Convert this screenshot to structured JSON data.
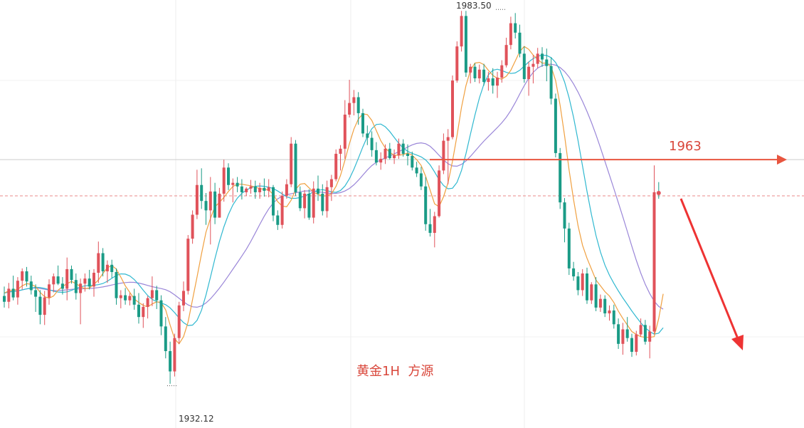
{
  "chart_data": {
    "type": "candlestick",
    "title": "黄金1H  方源",
    "high_label": "1983.50",
    "low_label": "1932.12",
    "level_label": "1963",
    "level_value": 1963,
    "dashed_level": 1958,
    "ylim": [
      1926,
      1985
    ],
    "grid": true,
    "colors": {
      "up": "#e0525a",
      "down": "#1a9b86",
      "ma_fast": "#f0a040",
      "ma_mid": "#30b8d0",
      "ma_slow": "#9a86d8",
      "level_arrow": "#e8553f",
      "forecast_arrow": "#ee3333",
      "dashed_level": "#e88a8a",
      "text_accent": "#d9473b"
    },
    "candles": [
      [
        1944.2,
        1945.5,
        1942.6,
        1943.4
      ],
      [
        1943.4,
        1946.0,
        1942.5,
        1945.2
      ],
      [
        1945.2,
        1947.0,
        1943.6,
        1944.0
      ],
      [
        1944.0,
        1946.8,
        1943.0,
        1946.3
      ],
      [
        1946.3,
        1948.0,
        1945.1,
        1947.6
      ],
      [
        1947.6,
        1948.2,
        1945.5,
        1946.2
      ],
      [
        1946.2,
        1947.0,
        1944.4,
        1945.0
      ],
      [
        1945.0,
        1945.8,
        1942.0,
        1944.1
      ],
      [
        1944.1,
        1945.0,
        1940.3,
        1941.6
      ],
      [
        1941.6,
        1944.9,
        1940.2,
        1944.0
      ],
      [
        1944.0,
        1946.5,
        1943.0,
        1945.8
      ],
      [
        1945.8,
        1947.3,
        1944.7,
        1946.9
      ],
      [
        1946.9,
        1948.4,
        1945.7,
        1945.9
      ],
      [
        1945.9,
        1946.8,
        1944.4,
        1945.2
      ],
      [
        1945.2,
        1949.5,
        1943.6,
        1947.9
      ],
      [
        1947.9,
        1948.4,
        1945.9,
        1946.4
      ],
      [
        1946.4,
        1947.3,
        1943.7,
        1944.6
      ],
      [
        1944.6,
        1946.6,
        1940.3,
        1945.9
      ],
      [
        1945.9,
        1947.3,
        1944.8,
        1946.6
      ],
      [
        1946.6,
        1947.8,
        1945.1,
        1945.5
      ],
      [
        1945.5,
        1947.9,
        1944.1,
        1947.4
      ],
      [
        1947.4,
        1951.7,
        1946.0,
        1950.1
      ],
      [
        1950.1,
        1950.8,
        1946.9,
        1947.6
      ],
      [
        1947.6,
        1949.1,
        1946.0,
        1948.5
      ],
      [
        1948.5,
        1949.2,
        1946.7,
        1947.5
      ],
      [
        1947.5,
        1948.0,
        1943.0,
        1943.9
      ],
      [
        1943.9,
        1945.0,
        1942.5,
        1944.3
      ],
      [
        1944.3,
        1945.3,
        1943.0,
        1943.6
      ],
      [
        1943.6,
        1944.6,
        1942.9,
        1944.2
      ],
      [
        1944.2,
        1945.2,
        1942.3,
        1943.0
      ],
      [
        1943.0,
        1944.6,
        1940.4,
        1941.3
      ],
      [
        1941.3,
        1943.2,
        1939.8,
        1942.7
      ],
      [
        1942.7,
        1944.2,
        1941.1,
        1943.9
      ],
      [
        1943.9,
        1946.9,
        1942.8,
        1945.0
      ],
      [
        1945.0,
        1945.6,
        1942.4,
        1943.6
      ],
      [
        1943.6,
        1944.3,
        1938.8,
        1940.0
      ],
      [
        1940.0,
        1941.3,
        1935.6,
        1936.6
      ],
      [
        1936.6,
        1937.9,
        1932.1,
        1933.8
      ],
      [
        1933.8,
        1939.0,
        1933.1,
        1938.4
      ],
      [
        1938.4,
        1943.4,
        1937.6,
        1942.9
      ],
      [
        1942.9,
        1946.2,
        1942.1,
        1944.9
      ],
      [
        1944.9,
        1952.6,
        1944.4,
        1952.1
      ],
      [
        1952.1,
        1956.0,
        1951.4,
        1955.4
      ],
      [
        1955.4,
        1961.6,
        1954.8,
        1959.5
      ],
      [
        1959.5,
        1961.8,
        1956.2,
        1957.3
      ],
      [
        1957.3,
        1958.4,
        1954.0,
        1956.0
      ],
      [
        1956.0,
        1960.6,
        1951.3,
        1958.6
      ],
      [
        1958.6,
        1959.8,
        1954.1,
        1955.0
      ],
      [
        1955.0,
        1959.1,
        1955.0,
        1958.3
      ],
      [
        1958.3,
        1963.0,
        1957.2,
        1961.9
      ],
      [
        1961.9,
        1962.5,
        1958.8,
        1959.5
      ],
      [
        1959.5,
        1960.4,
        1957.1,
        1959.8
      ],
      [
        1959.8,
        1960.6,
        1958.5,
        1959.3
      ],
      [
        1959.3,
        1960.3,
        1957.5,
        1958.5
      ],
      [
        1958.5,
        1959.2,
        1958.0,
        1959.0
      ],
      [
        1959.0,
        1960.2,
        1958.3,
        1959.3
      ],
      [
        1959.3,
        1960.1,
        1957.6,
        1958.5
      ],
      [
        1958.5,
        1959.8,
        1957.6,
        1959.1
      ],
      [
        1959.1,
        1960.4,
        1957.9,
        1958.7
      ],
      [
        1958.7,
        1960.3,
        1957.8,
        1959.2
      ],
      [
        1959.2,
        1959.5,
        1954.5,
        1955.3
      ],
      [
        1955.3,
        1956.0,
        1953.3,
        1954.0
      ],
      [
        1954.0,
        1958.6,
        1953.5,
        1958.0
      ],
      [
        1958.0,
        1960.3,
        1957.6,
        1959.6
      ],
      [
        1959.6,
        1966.1,
        1959.2,
        1965.2
      ],
      [
        1965.2,
        1965.7,
        1958.0,
        1958.5
      ],
      [
        1958.5,
        1959.3,
        1955.9,
        1956.3
      ],
      [
        1956.3,
        1958.8,
        1954.9,
        1958.3
      ],
      [
        1958.3,
        1958.9,
        1954.7,
        1955.0
      ],
      [
        1955.0,
        1960.0,
        1954.2,
        1959.0
      ],
      [
        1959.0,
        1960.8,
        1957.3,
        1958.3
      ],
      [
        1958.3,
        1959.6,
        1955.3,
        1955.9
      ],
      [
        1955.9,
        1960.1,
        1955.0,
        1959.2
      ],
      [
        1959.2,
        1960.9,
        1957.3,
        1960.3
      ],
      [
        1960.3,
        1964.4,
        1960.0,
        1963.8
      ],
      [
        1963.8,
        1965.0,
        1961.5,
        1964.5
      ],
      [
        1964.5,
        1971.2,
        1963.1,
        1969.2
      ],
      [
        1969.2,
        1974.0,
        1968.8,
        1970.8
      ],
      [
        1970.8,
        1972.6,
        1969.1,
        1971.6
      ],
      [
        1971.6,
        1972.3,
        1967.8,
        1969.4
      ],
      [
        1969.4,
        1970.0,
        1966.1,
        1966.6
      ],
      [
        1966.6,
        1967.7,
        1965.0,
        1966.0
      ],
      [
        1966.0,
        1966.9,
        1963.4,
        1964.3
      ],
      [
        1964.3,
        1965.4,
        1962.2,
        1962.6
      ],
      [
        1962.6,
        1964.0,
        1961.6,
        1963.1
      ],
      [
        1963.1,
        1965.1,
        1962.4,
        1964.5
      ],
      [
        1964.5,
        1965.3,
        1963.0,
        1963.2
      ],
      [
        1963.2,
        1964.4,
        1962.4,
        1963.6
      ],
      [
        1963.6,
        1965.9,
        1963.1,
        1965.2
      ],
      [
        1965.2,
        1965.8,
        1963.4,
        1963.8
      ],
      [
        1963.8,
        1965.1,
        1962.2,
        1963.5
      ],
      [
        1963.5,
        1964.1,
        1961.5,
        1961.9
      ],
      [
        1961.9,
        1962.7,
        1960.6,
        1961.1
      ],
      [
        1961.1,
        1962.0,
        1958.8,
        1959.3
      ],
      [
        1959.3,
        1960.6,
        1953.2,
        1954.1
      ],
      [
        1954.1,
        1956.2,
        1952.4,
        1952.9
      ],
      [
        1952.9,
        1955.8,
        1950.9,
        1955.2
      ],
      [
        1955.2,
        1962.2,
        1955.0,
        1961.5
      ],
      [
        1961.5,
        1966.6,
        1961.0,
        1965.6
      ],
      [
        1965.6,
        1967.2,
        1959.6,
        1966.1
      ],
      [
        1966.1,
        1974.6,
        1965.8,
        1973.9
      ],
      [
        1973.9,
        1979.3,
        1973.6,
        1978.6
      ],
      [
        1978.6,
        1983.5,
        1977.9,
        1982.8
      ],
      [
        1982.8,
        1983.5,
        1974.4,
        1975.0
      ],
      [
        1975.0,
        1976.2,
        1973.5,
        1975.8
      ],
      [
        1975.8,
        1976.3,
        1973.7,
        1974.2
      ],
      [
        1974.2,
        1976.1,
        1973.5,
        1975.4
      ],
      [
        1975.4,
        1976.2,
        1973.2,
        1973.7
      ],
      [
        1973.7,
        1975.1,
        1972.5,
        1974.2
      ],
      [
        1974.2,
        1975.6,
        1972.1,
        1973.2
      ],
      [
        1973.2,
        1975.1,
        1971.5,
        1974.3
      ],
      [
        1974.3,
        1976.7,
        1973.6,
        1976.0
      ],
      [
        1976.0,
        1979.8,
        1975.7,
        1978.8
      ],
      [
        1978.8,
        1982.7,
        1978.2,
        1981.8
      ],
      [
        1981.8,
        1983.2,
        1979.7,
        1980.5
      ],
      [
        1980.5,
        1981.6,
        1977.1,
        1977.6
      ],
      [
        1977.6,
        1978.6,
        1973.6,
        1974.1
      ],
      [
        1974.1,
        1976.5,
        1971.8,
        1975.8
      ],
      [
        1975.8,
        1977.4,
        1973.5,
        1976.2
      ],
      [
        1976.2,
        1978.4,
        1975.6,
        1977.6
      ],
      [
        1977.6,
        1978.5,
        1975.8,
        1976.8
      ],
      [
        1976.8,
        1978.3,
        1973.8,
        1975.9
      ],
      [
        1975.9,
        1977.1,
        1970.6,
        1971.4
      ],
      [
        1971.4,
        1972.1,
        1963.3,
        1963.9
      ],
      [
        1963.9,
        1964.6,
        1956.2,
        1957.1
      ],
      [
        1957.1,
        1957.7,
        1951.6,
        1953.5
      ],
      [
        1953.5,
        1954.3,
        1947.1,
        1948.0
      ],
      [
        1948.0,
        1948.9,
        1946.3,
        1946.9
      ],
      [
        1946.9,
        1947.5,
        1944.3,
        1945.0
      ],
      [
        1945.0,
        1947.9,
        1944.2,
        1947.3
      ],
      [
        1947.3,
        1948.1,
        1943.1,
        1943.6
      ],
      [
        1943.6,
        1946.1,
        1943.1,
        1945.8
      ],
      [
        1945.8,
        1946.8,
        1942.1,
        1942.6
      ],
      [
        1942.6,
        1944.4,
        1942.0,
        1943.8
      ],
      [
        1943.8,
        1944.3,
        1941.3,
        1941.8
      ],
      [
        1941.8,
        1942.9,
        1940.8,
        1942.2
      ],
      [
        1942.2,
        1943.0,
        1939.7,
        1940.3
      ],
      [
        1940.3,
        1941.1,
        1936.9,
        1937.6
      ],
      [
        1937.6,
        1940.5,
        1936.1,
        1939.6
      ],
      [
        1939.6,
        1941.3,
        1937.9,
        1938.4
      ],
      [
        1938.4,
        1939.0,
        1935.8,
        1936.5
      ],
      [
        1936.5,
        1939.4,
        1936.0,
        1938.9
      ],
      [
        1938.9,
        1941.1,
        1938.6,
        1940.2
      ],
      [
        1940.2,
        1940.9,
        1937.5,
        1937.9
      ],
      [
        1937.9,
        1940.1,
        1935.6,
        1939.3
      ],
      [
        1939.3,
        1962.2,
        1939.0,
        1958.5
      ],
      [
        1958.5,
        1959.9,
        1957.6,
        1958.4
      ]
    ],
    "ma_fast": [
      1944.6,
      1944.9,
      1945.0,
      1945.1,
      1945.6,
      1945.9,
      1945.8,
      1945.5,
      1944.7,
      1944.1,
      1943.9,
      1944.2,
      1945.0,
      1945.5,
      1945.9,
      1946.2,
      1945.9,
      1945.5,
      1945.2,
      1945.3,
      1945.8,
      1946.4,
      1947.3,
      1948.1,
      1948.4,
      1947.9,
      1946.8,
      1945.6,
      1944.7,
      1943.8,
      1943.3,
      1942.9,
      1942.7,
      1943.1,
      1943.4,
      1943.3,
      1942.3,
      1940.2,
      1938.3,
      1937.6,
      1938.6,
      1940.6,
      1943.7,
      1946.8,
      1950.0,
      1953.0,
      1954.9,
      1956.5,
      1957.1,
      1957.8,
      1958.6,
      1959.3,
      1959.6,
      1959.6,
      1959.5,
      1959.4,
      1959.2,
      1959.0,
      1958.9,
      1958.8,
      1958.2,
      1957.2,
      1956.6,
      1956.5,
      1957.4,
      1958.9,
      1959.6,
      1959.7,
      1959.1,
      1958.5,
      1958.2,
      1958.0,
      1958.0,
      1958.3,
      1959.3,
      1960.8,
      1962.9,
      1965.2,
      1967.2,
      1968.6,
      1969.3,
      1969.2,
      1968.4,
      1967.0,
      1965.6,
      1964.6,
      1964.0,
      1963.6,
      1963.6,
      1963.7,
      1963.9,
      1963.6,
      1963.0,
      1962.2,
      1960.7,
      1958.8,
      1956.9,
      1956.5,
      1957.9,
      1959.8,
      1962.8,
      1966.3,
      1970.2,
      1973.2,
      1975.3,
      1976.3,
      1976.4,
      1976.1,
      1975.3,
      1974.6,
      1974.2,
      1974.1,
      1974.5,
      1975.3,
      1976.6,
      1977.9,
      1978.6,
      1978.2,
      1977.4,
      1976.8,
      1976.3,
      1976.3,
      1975.8,
      1973.9,
      1970.5,
      1966.3,
      1961.6,
      1957.5,
      1953.9,
      1951.2,
      1949.4,
      1947.9,
      1946.4,
      1945.6,
      1944.8,
      1944.2,
      1943.3,
      1942.1,
      1941.1,
      1940.2,
      1939.3,
      1938.9,
      1938.6,
      1938.5,
      1938.5,
      1938.6,
      1941.1,
      1944.5
    ]
  }
}
